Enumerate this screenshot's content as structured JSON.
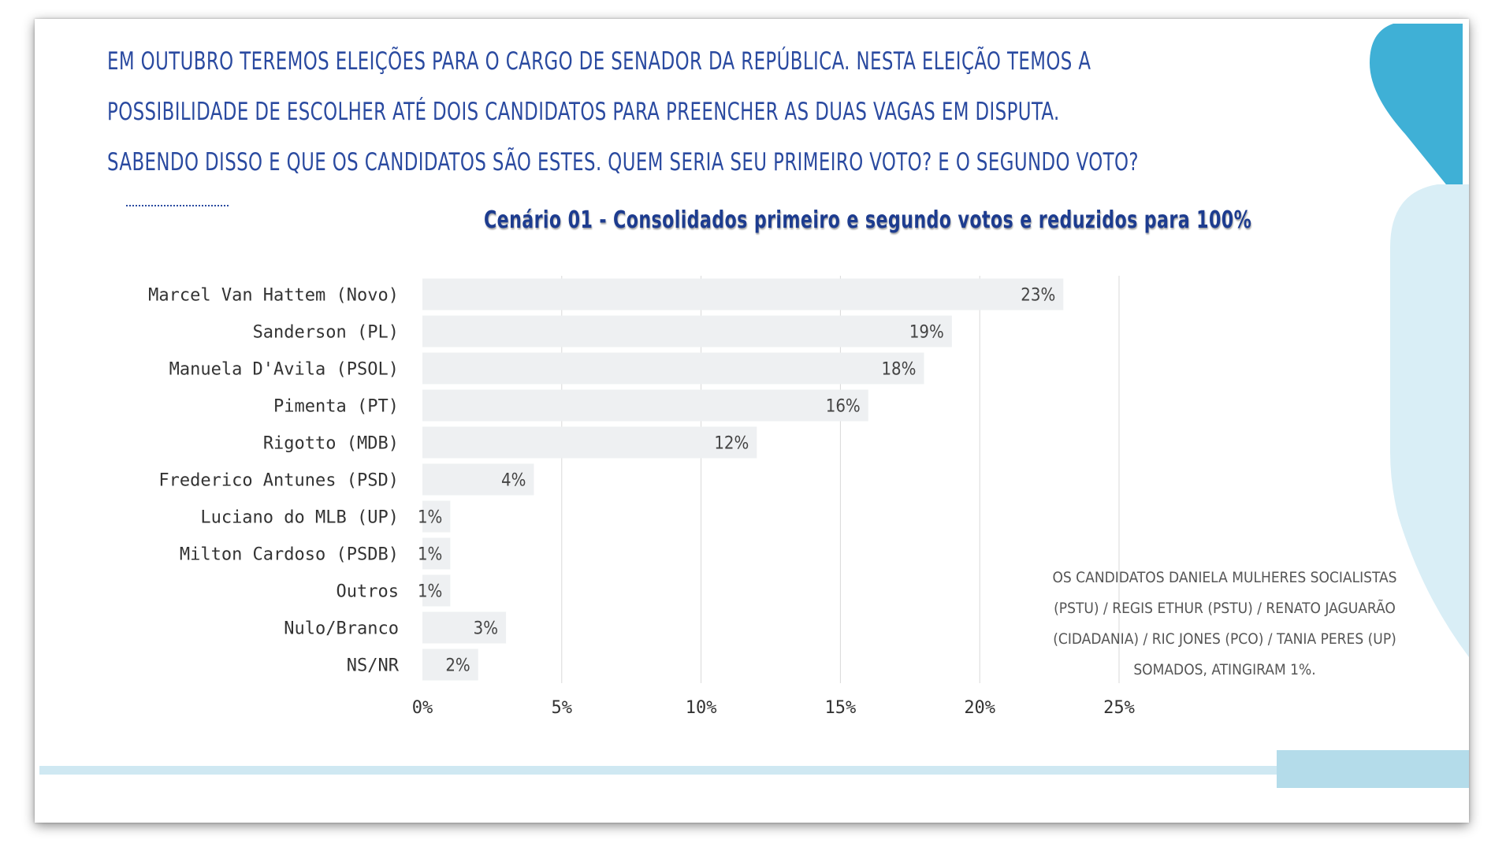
{
  "question": {
    "line1": "Em outubro teremos eleições para o cargo de senador da República. Nesta eleição temos a",
    "line2": "possibilidade de escolher até dois candidatos para preencher as duas vagas em disputa.",
    "line3": "Sabendo disso e que os candidatos são estes. Quem seria seu primeiro voto? E o segundo voto?"
  },
  "note": "Os candidatos Daniela Mulheres Socialistas (PSTU) / Regis Ethur (PSTU) / Renato Jaguarão (Cidadania) / Ric Jones (PCO) / Tania Peres (UP) somados, atingiram 1%.",
  "colors": {
    "title": "#1d3c8f",
    "bar": "#eef0f2",
    "grid": "#d9d9d9",
    "accent": "#3fb0d6",
    "accent_light": "#d9eef6"
  },
  "chart_data": {
    "type": "bar",
    "orientation": "horizontal",
    "title": "Cenário 01 - Consolidados primeiro e segundo votos e reduzidos para 100%",
    "categories": [
      "Marcel Van Hattem (Novo)",
      "Sanderson (PL)",
      "Manuela D'Avila (PSOL)",
      "Pimenta (PT)",
      "Rigotto (MDB)",
      "Frederico Antunes (PSD)",
      "Luciano do MLB (UP)",
      "Milton Cardoso (PSDB)",
      "Outros",
      "Nulo/Branco",
      "NS/NR"
    ],
    "values": [
      23,
      19,
      18,
      16,
      12,
      4,
      1,
      1,
      1,
      3,
      2
    ],
    "data_labels": [
      "23%",
      "19%",
      "18%",
      "16%",
      "12%",
      "4%",
      "1%",
      "1%",
      "1%",
      "3%",
      "2%"
    ],
    "xlim": [
      0,
      25
    ],
    "xticks": [
      0,
      5,
      10,
      15,
      20,
      25
    ],
    "xtick_labels": [
      "0%",
      "5%",
      "10%",
      "15%",
      "20%",
      "25%"
    ],
    "grid": true,
    "legend": "none"
  }
}
